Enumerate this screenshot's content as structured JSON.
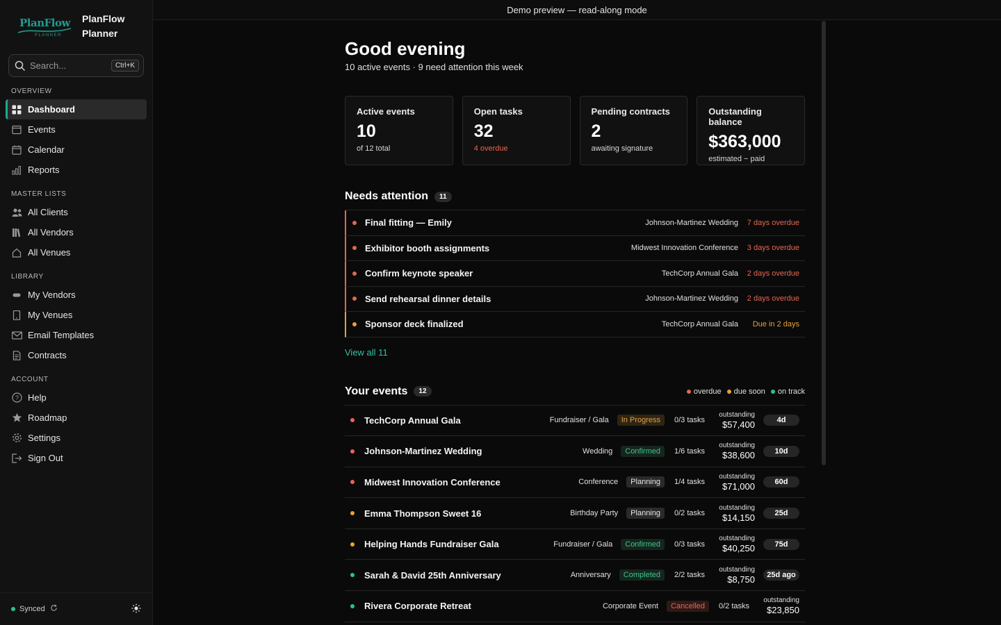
{
  "brand": {
    "logo_text": "PlanFlow",
    "logo_sub": "PLANNER",
    "name": "PlanFlow Planner"
  },
  "search": {
    "placeholder": "Search...",
    "shortcut": "Ctrl+K"
  },
  "sidebar": {
    "sections": [
      {
        "label": "OVERVIEW",
        "items": [
          {
            "label": "Dashboard",
            "icon": "grid-icon",
            "active": true
          },
          {
            "label": "Events",
            "icon": "inbox-icon"
          },
          {
            "label": "Calendar",
            "icon": "calendar-icon"
          },
          {
            "label": "Reports",
            "icon": "bar-chart-icon"
          }
        ]
      },
      {
        "label": "MASTER LISTS",
        "items": [
          {
            "label": "All Clients",
            "icon": "users-icon"
          },
          {
            "label": "All Vendors",
            "icon": "books-icon"
          },
          {
            "label": "All Venues",
            "icon": "home-icon"
          }
        ]
      },
      {
        "label": "LIBRARY",
        "items": [
          {
            "label": "My Vendors",
            "icon": "tag-icon"
          },
          {
            "label": "My Venues",
            "icon": "building-icon"
          },
          {
            "label": "Email Templates",
            "icon": "mail-icon"
          },
          {
            "label": "Contracts",
            "icon": "document-icon"
          }
        ]
      },
      {
        "label": "ACCOUNT",
        "items": [
          {
            "label": "Help",
            "icon": "help-icon"
          },
          {
            "label": "Roadmap",
            "icon": "star-icon"
          },
          {
            "label": "Settings",
            "icon": "gear-icon"
          },
          {
            "label": "Sign Out",
            "icon": "sign-out-icon"
          }
        ]
      }
    ],
    "footer": {
      "sync_label": "Synced"
    }
  },
  "topbar": {
    "text": "Demo preview — read-along mode"
  },
  "greeting": {
    "title": "Good evening",
    "subtitle": "10 active events · 9 need attention this week"
  },
  "stats": [
    {
      "label": "Active events",
      "value": "10",
      "sub": "of 12 total",
      "sub_tone": "normal"
    },
    {
      "label": "Open tasks",
      "value": "32",
      "sub": "4 overdue",
      "sub_tone": "red"
    },
    {
      "label": "Pending contracts",
      "value": "2",
      "sub": "awaiting signature",
      "sub_tone": "normal"
    },
    {
      "label": "Outstanding balance",
      "value": "$363,000",
      "sub": "estimated − paid",
      "sub_tone": "normal"
    }
  ],
  "attention": {
    "title": "Needs attention",
    "count": "11",
    "items": [
      {
        "name": "Final fitting — Emily",
        "event": "Johnson-Martinez Wedding",
        "status": "7 days overdue",
        "tone": "overdue"
      },
      {
        "name": "Exhibitor booth assignments",
        "event": "Midwest Innovation Conference",
        "status": "3 days overdue",
        "tone": "overdue"
      },
      {
        "name": "Confirm keynote speaker",
        "event": "TechCorp Annual Gala",
        "status": "2 days overdue",
        "tone": "overdue"
      },
      {
        "name": "Send rehearsal dinner details",
        "event": "Johnson-Martinez Wedding",
        "status": "2 days overdue",
        "tone": "overdue"
      },
      {
        "name": "Sponsor deck finalized",
        "event": "TechCorp Annual Gala",
        "status": "Due in 2 days",
        "tone": "due"
      }
    ],
    "view_all": "View all 11"
  },
  "events": {
    "title": "Your events",
    "count": "12",
    "legend": [
      {
        "label": "overdue",
        "tone": "overdue"
      },
      {
        "label": "due soon",
        "tone": "due"
      },
      {
        "label": "on track",
        "tone": "ok"
      }
    ],
    "outstanding_label": "outstanding",
    "items": [
      {
        "name": "TechCorp Annual Gala",
        "type": "Fundraiser / Gala",
        "status": "In Progress",
        "status_kind": "progress",
        "tasks": "0/3 tasks",
        "outstanding": "$57,400",
        "days": "4d",
        "tone": "overdue"
      },
      {
        "name": "Johnson-Martinez Wedding",
        "type": "Wedding",
        "status": "Confirmed",
        "status_kind": "confirmed",
        "tasks": "1/6 tasks",
        "outstanding": "$38,600",
        "days": "10d",
        "tone": "overdue"
      },
      {
        "name": "Midwest Innovation Conference",
        "type": "Conference",
        "status": "Planning",
        "status_kind": "planning",
        "tasks": "1/4 tasks",
        "outstanding": "$71,000",
        "days": "60d",
        "tone": "overdue"
      },
      {
        "name": "Emma Thompson Sweet 16",
        "type": "Birthday Party",
        "status": "Planning",
        "status_kind": "planning",
        "tasks": "0/2 tasks",
        "outstanding": "$14,150",
        "days": "25d",
        "tone": "due"
      },
      {
        "name": "Helping Hands Fundraiser Gala",
        "type": "Fundraiser / Gala",
        "status": "Confirmed",
        "status_kind": "confirmed",
        "tasks": "0/3 tasks",
        "outstanding": "$40,250",
        "days": "75d",
        "tone": "due"
      },
      {
        "name": "Sarah & David 25th Anniversary",
        "type": "Anniversary",
        "status": "Completed",
        "status_kind": "completed",
        "tasks": "2/2 tasks",
        "outstanding": "$8,750",
        "days": "25d ago",
        "tone": "ok"
      },
      {
        "name": "Rivera Corporate Retreat",
        "type": "Corporate Event",
        "status": "Cancelled",
        "status_kind": "cancelled",
        "tasks": "0/2 tasks",
        "outstanding": "$23,850",
        "days": "",
        "tone": "ok"
      }
    ]
  },
  "colors": {
    "accent": "#1fa98f",
    "overdue": "#e86552",
    "due": "#e8a03a",
    "ok": "#2bc48a"
  }
}
